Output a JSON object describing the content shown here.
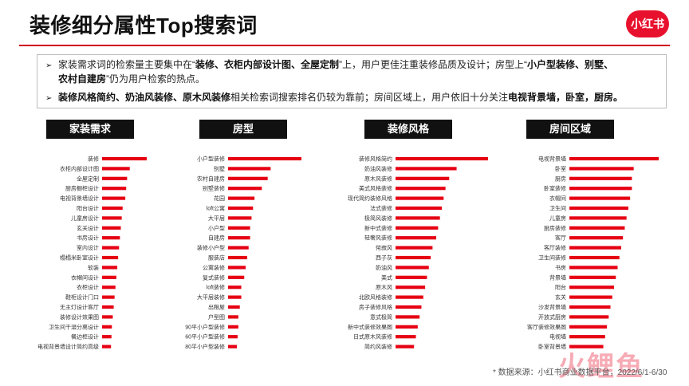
{
  "header": {
    "title": "装修细分属性Top搜索词",
    "logo_text": "小红书",
    "accent_color": "#d0021b"
  },
  "summary": {
    "bullet1": {
      "parts": [
        {
          "text": "家装需求词的检索量主要集中在“",
          "bold": false
        },
        {
          "text": "装修、衣柜内部设计图、全屋定制",
          "bold": true
        },
        {
          "text": "”上，用户更佳注重装修品质及设计；房型上“",
          "bold": false
        },
        {
          "text": "小户型装修、别墅、",
          "bold": true
        }
      ],
      "line2_parts": [
        {
          "text": "农村自建房",
          "bold": true
        },
        {
          "text": "”仍为用户检索的热点。",
          "bold": false
        }
      ]
    },
    "bullet2": {
      "parts": [
        {
          "text": "装修风格简约、奶油风装修、原木风装修",
          "bold": true
        },
        {
          "text": "相关检索词搜索排名仍较为靠前；房间区域上，用户依旧十分关注",
          "bold": false
        },
        {
          "text": "电视背景墙，卧室，厨房。",
          "bold": true
        }
      ]
    }
  },
  "chart_data": [
    {
      "type": "bar",
      "orientation": "horizontal",
      "title": "家装需求",
      "categories": [
        "装修",
        "衣柜内部设计图",
        "全屋定制",
        "厨房橱柜设计",
        "电视背景墙设计",
        "阳台设计",
        "儿童房设计",
        "玄关设计",
        "书房设计",
        "室内设计",
        "榻榻米卧室设计",
        "软装",
        "衣帽间设计",
        "衣柜设计",
        "鞋柜设计门口",
        "无主灯设计客厅",
        "装修设计效果图",
        "卫生间干湿分离设计",
        "餐边柜设计",
        "电视背景墙设计简约高级"
      ],
      "values": [
        100,
        62,
        56,
        54,
        52,
        46,
        44,
        42,
        40,
        38,
        36,
        34,
        32,
        30,
        28,
        26,
        24,
        22,
        21,
        20
      ],
      "bar_color": "#e60012"
    },
    {
      "type": "bar",
      "orientation": "horizontal",
      "title": "房型",
      "categories": [
        "小户型装修",
        "别墅",
        "农村自建房",
        "别墅装修",
        "花园",
        "loft公寓",
        "大平层",
        "小户型",
        "自建房",
        "装修小户型",
        "服装店",
        "公寓装修",
        "复式装修",
        "loft装修",
        "大平层装修",
        "出租屋",
        "户型图",
        "90平小户型装修",
        "60平小户型装修",
        "80平小户型装修"
      ],
      "values": [
        100,
        58,
        54,
        46,
        36,
        34,
        32,
        30,
        30,
        28,
        26,
        24,
        22,
        18,
        18,
        16,
        14,
        14,
        13,
        12
      ],
      "bar_color": "#e60012"
    },
    {
      "type": "bar",
      "orientation": "horizontal",
      "title": "装修风格",
      "categories": [
        "装修风格简约",
        "奶油风装修",
        "原木风装修",
        "美式风格装修",
        "现代简约装修风格",
        "法式装修",
        "极简风装修",
        "新中式装修",
        "轻奢风装修",
        "侘寂风",
        "西子灰",
        "奶油风",
        "美式",
        "原木风",
        "北欧风格装修",
        "房子装修风格",
        "意式极简",
        "新中式装修效果图",
        "日式原木风装修",
        "简约风装修"
      ],
      "values": [
        100,
        66,
        58,
        54,
        52,
        50,
        48,
        46,
        44,
        40,
        38,
        36,
        34,
        32,
        30,
        28,
        26,
        24,
        22,
        20
      ],
      "bar_color": "#e60012"
    },
    {
      "type": "bar",
      "orientation": "horizontal",
      "title": "房间区域",
      "categories": [
        "电视背景墙",
        "卧室",
        "厨房",
        "卧室装修",
        "衣帽间",
        "卫生间",
        "儿童房",
        "厨房装修",
        "客厅",
        "客厅装修",
        "卫生间装修",
        "书房",
        "背景墙",
        "阳台",
        "玄关",
        "沙发背景墙",
        "开放式厨房",
        "客厅装修效果图",
        "电视墙",
        "卧室背景墙"
      ],
      "values": [
        100,
        72,
        70,
        70,
        68,
        66,
        64,
        62,
        60,
        58,
        56,
        54,
        52,
        50,
        48,
        46,
        44,
        42,
        40,
        38
      ],
      "bar_color": "#e60012"
    }
  ],
  "footer": {
    "source": "* 数据来源：小红书商业数据平台，2022/6/1-6/30",
    "watermark": "火鲤鱼"
  }
}
